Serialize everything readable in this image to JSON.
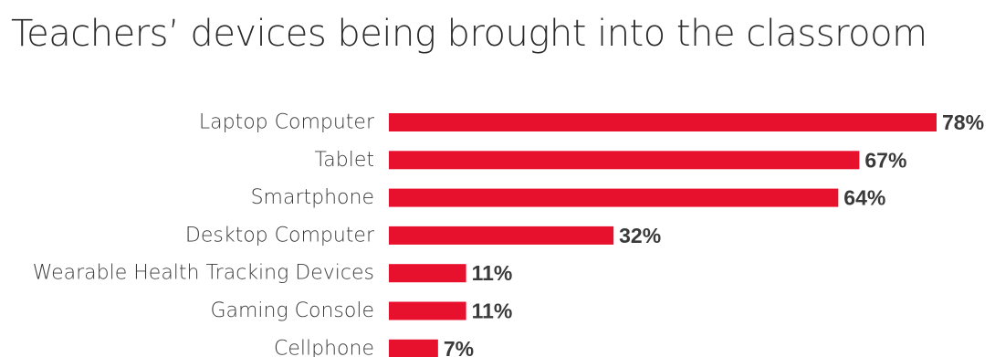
{
  "chart_data": {
    "type": "bar",
    "orientation": "horizontal",
    "title": "Teachers’ devices being brought into the classroom",
    "categories": [
      "Laptop Computer",
      "Tablet",
      "Smartphone",
      "Desktop Computer",
      "Wearable Health Tracking Devices",
      "Gaming Console",
      "Cellphone"
    ],
    "values": [
      78,
      67,
      64,
      32,
      11,
      11,
      7
    ],
    "value_labels": [
      "78%",
      "67%",
      "64%",
      "32%",
      "11%",
      "11%",
      "7%"
    ],
    "xlim": [
      0,
      78
    ],
    "grid": false,
    "legend": "none",
    "bar_color": "#e8112d"
  }
}
